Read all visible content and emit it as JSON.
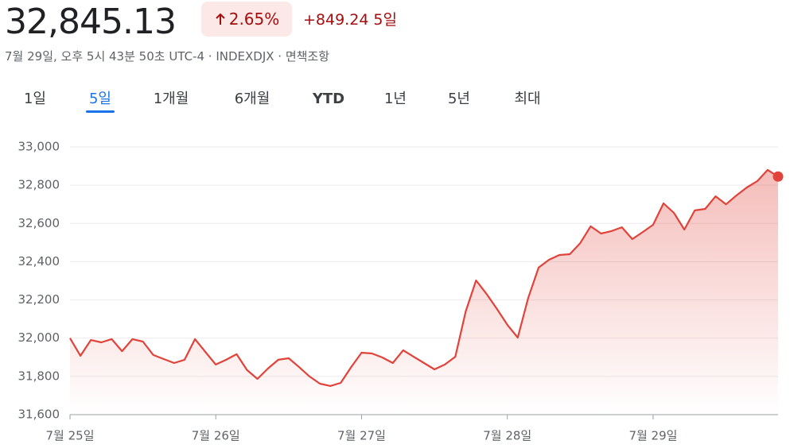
{
  "header": {
    "price": "32,845.13",
    "change_pct": "2.65%",
    "change": "+849.24",
    "period": "5일",
    "subtitle": "7월 29일, 오후 5시 43분 50초 UTC-4 · INDEXDJX · 면책조항"
  },
  "tabs": {
    "items": [
      "1일",
      "5일",
      "1개월",
      "6개월",
      "YTD",
      "1년",
      "5년",
      "최대"
    ],
    "selected": 1
  },
  "chart_data": {
    "type": "area",
    "color": "#e0433a",
    "grid": true,
    "values": [
      32000,
      31908,
      31990,
      31978,
      31995,
      31932,
      31995,
      31982,
      31912,
      31891,
      31870,
      31887,
      31995,
      31928,
      31862,
      31887,
      31916,
      31833,
      31787,
      31841,
      31887,
      31895,
      31849,
      31800,
      31762,
      31750,
      31766,
      31849,
      31924,
      31920,
      31899,
      31870,
      31937,
      31903,
      31870,
      31837,
      31862,
      31903,
      32140,
      32302,
      32232,
      32153,
      32070,
      32003,
      32210,
      32369,
      32410,
      32435,
      32439,
      32497,
      32585,
      32547,
      32560,
      32580,
      32518,
      32555,
      32593,
      32705,
      32655,
      32568,
      32668,
      32676,
      32742,
      32700,
      32746,
      32788,
      32821,
      32880,
      32845.13
    ],
    "xlim": [
      0,
      68
    ],
    "xticks": [
      {
        "value": 0,
        "label": "7월 25일"
      },
      {
        "value": 14,
        "label": "7월 26일"
      },
      {
        "value": 28,
        "label": "7월 27일"
      },
      {
        "value": 42,
        "label": "7월 28일"
      },
      {
        "value": 56,
        "label": "7월 29일"
      }
    ],
    "ylim": [
      31600,
      33000
    ],
    "yticks": [
      {
        "value": 31600,
        "label": "31,600"
      },
      {
        "value": 31800,
        "label": "31,800"
      },
      {
        "value": 32000,
        "label": "32,000"
      },
      {
        "value": 32200,
        "label": "32,200"
      },
      {
        "value": 32400,
        "label": "32,400"
      },
      {
        "value": 32600,
        "label": "32,600"
      },
      {
        "value": 32800,
        "label": "32,800"
      },
      {
        "value": 33000,
        "label": "33,000"
      }
    ]
  }
}
